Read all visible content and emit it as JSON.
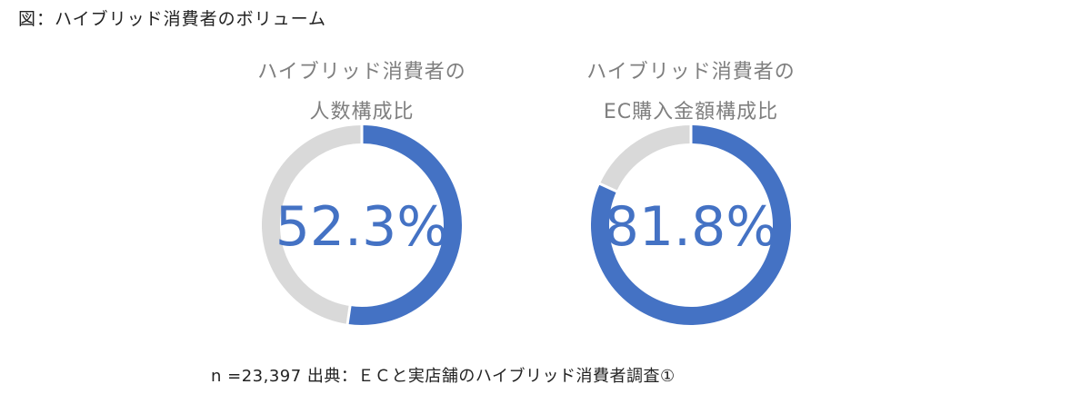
{
  "figure_title": "図：ハイブリッド消費者のボリューム",
  "chart_data": [
    {
      "type": "pie",
      "title_lines": [
        "ハイブリッド消費者の",
        "人数構成比"
      ],
      "center_label": "52.3%",
      "values": [
        52.3,
        47.7
      ],
      "colors": [
        "#4472c4",
        "#d9d9d9"
      ]
    },
    {
      "type": "pie",
      "title_lines": [
        "ハイブリッド消費者の",
        "EC購入金額構成比"
      ],
      "center_label": "81.8%",
      "values": [
        81.8,
        18.2
      ],
      "colors": [
        "#4472c4",
        "#d9d9d9"
      ]
    }
  ],
  "footnote": "n =23,397 出典：ＥＣと実店舗のハイブリッド消費者調査①",
  "colors": {
    "accent": "#4472c4",
    "remainder": "#d9d9d9",
    "title_text": "#7f7f7f"
  }
}
